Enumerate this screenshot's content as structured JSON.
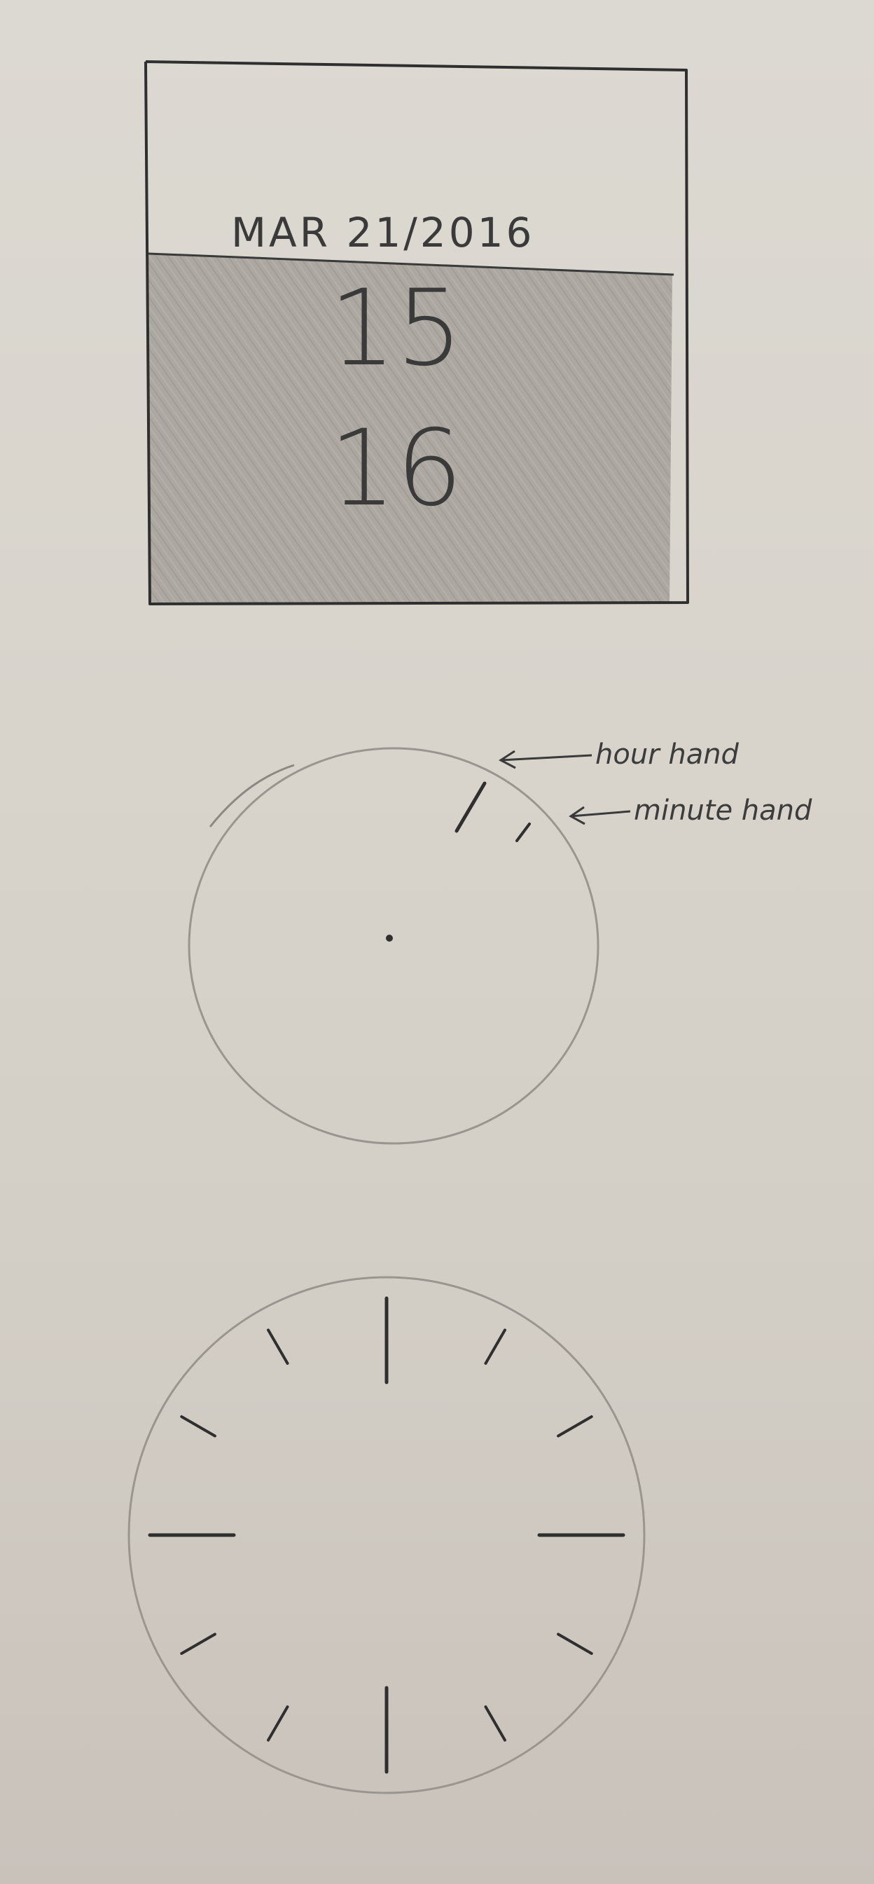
{
  "widget_square": {
    "date": "MAR 21/2016",
    "hour": "15",
    "minute": "16",
    "colors": {
      "frame": "#2f2f2f",
      "shaded": "#a6a29b",
      "paper": "#dbd8d1"
    }
  },
  "clock_concept": {
    "annotations": {
      "hour_hand_label": "hour hand",
      "minute_hand_label": "minute hand"
    }
  },
  "clock_face": {
    "tick_count": 12,
    "major_ticks": [
      12,
      3,
      6,
      9
    ]
  }
}
